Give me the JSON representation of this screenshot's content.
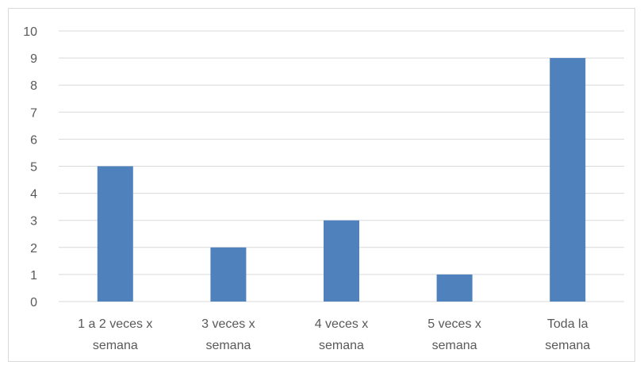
{
  "chart_data": {
    "type": "bar",
    "title": "",
    "xlabel": "",
    "ylabel": "",
    "categories": [
      [
        "1 a 2 veces x",
        "semana"
      ],
      [
        "3 veces x",
        "semana"
      ],
      [
        "4 veces x",
        "semana"
      ],
      [
        "5 veces x",
        "semana"
      ],
      [
        "Toda la",
        "semana"
      ]
    ],
    "values": [
      5,
      2,
      3,
      1,
      9
    ],
    "ylim": [
      0,
      10
    ],
    "yticks": [
      "0",
      "1",
      "2",
      "3",
      "4",
      "5",
      "6",
      "7",
      "8",
      "9",
      "10"
    ],
    "grid": true,
    "legend": "none",
    "bar_color": "#4f81bd",
    "grid_color": "#d9d9d9"
  }
}
